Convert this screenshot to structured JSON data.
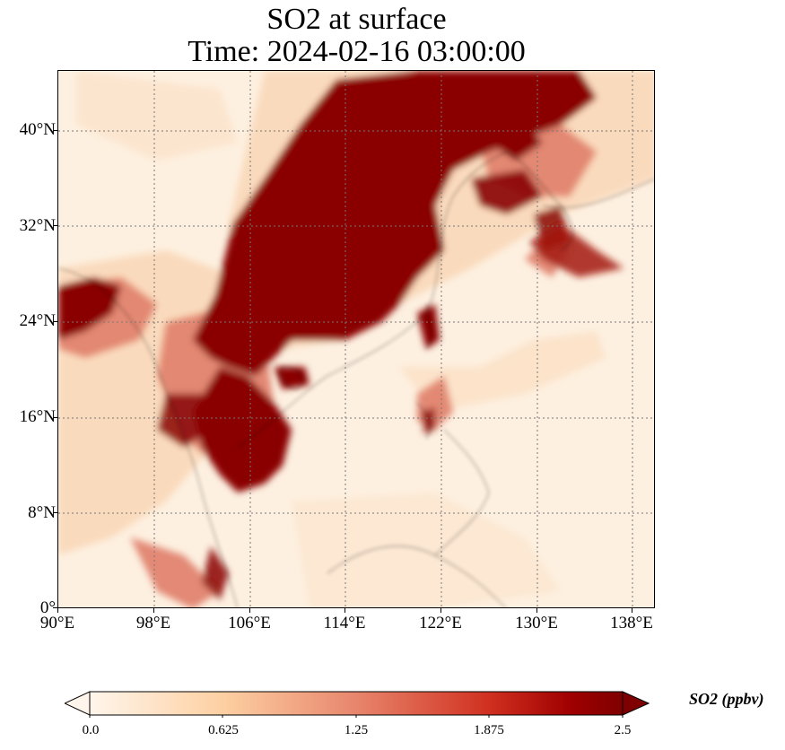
{
  "title_line1": "SO2 at surface",
  "title_line2": "Time: 2024-02-16 03:00:00",
  "map": {
    "lon_range": [
      90,
      140
    ],
    "lat_range": [
      0,
      45
    ],
    "gridline_style": "dotted",
    "coastlines": true
  },
  "x_ticks": [
    "90°E",
    "98°E",
    "106°E",
    "114°E",
    "122°E",
    "130°E",
    "138°E"
  ],
  "y_ticks": [
    "0°",
    "8°N",
    "16°N",
    "24°N",
    "32°N",
    "40°N"
  ],
  "colorbar": {
    "label": "SO2 (ppbv)",
    "ticks": [
      "0.0",
      "0.625",
      "1.25",
      "1.875",
      "2.5"
    ],
    "colors": [
      "#fff5eb",
      "#fdd0a2",
      "#fd8d3c",
      "#d94801",
      "#a00000",
      "#7f0000"
    ],
    "extend": "both"
  },
  "colors": {
    "background": "#fdf0e0",
    "max": "#7f0000",
    "high": "#a31a0f",
    "mid": "#e07f6a",
    "low": "#f9c6a3"
  }
}
